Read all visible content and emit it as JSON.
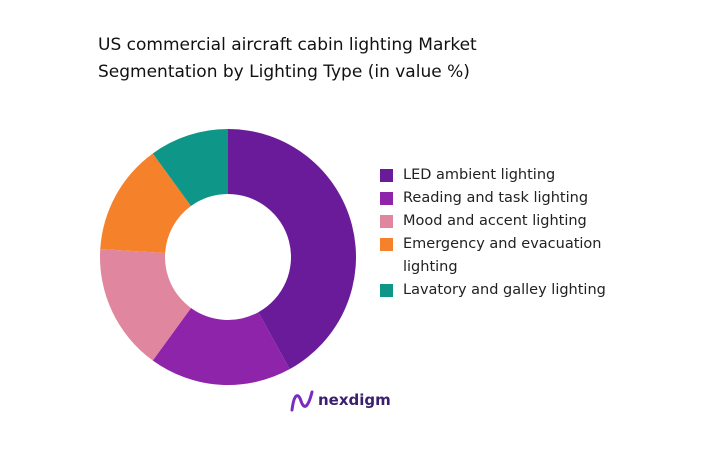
{
  "chart_data": {
    "type": "donut",
    "title": "US commercial aircraft cabin lighting Market Segmentation by Lighting Type (in value %)",
    "categories": [
      "LED ambient lighting",
      "Reading and task lighting",
      "Mood and accent lighting",
      "Emergency and evacuation lighting",
      "Lavatory and galley lighting"
    ],
    "values": [
      42,
      18,
      16,
      14,
      10
    ],
    "colors": [
      "#6a1b9a",
      "#8e24aa",
      "#e0879f",
      "#f5822a",
      "#0e9688"
    ],
    "legend": "right"
  },
  "logo": "nexdigm"
}
